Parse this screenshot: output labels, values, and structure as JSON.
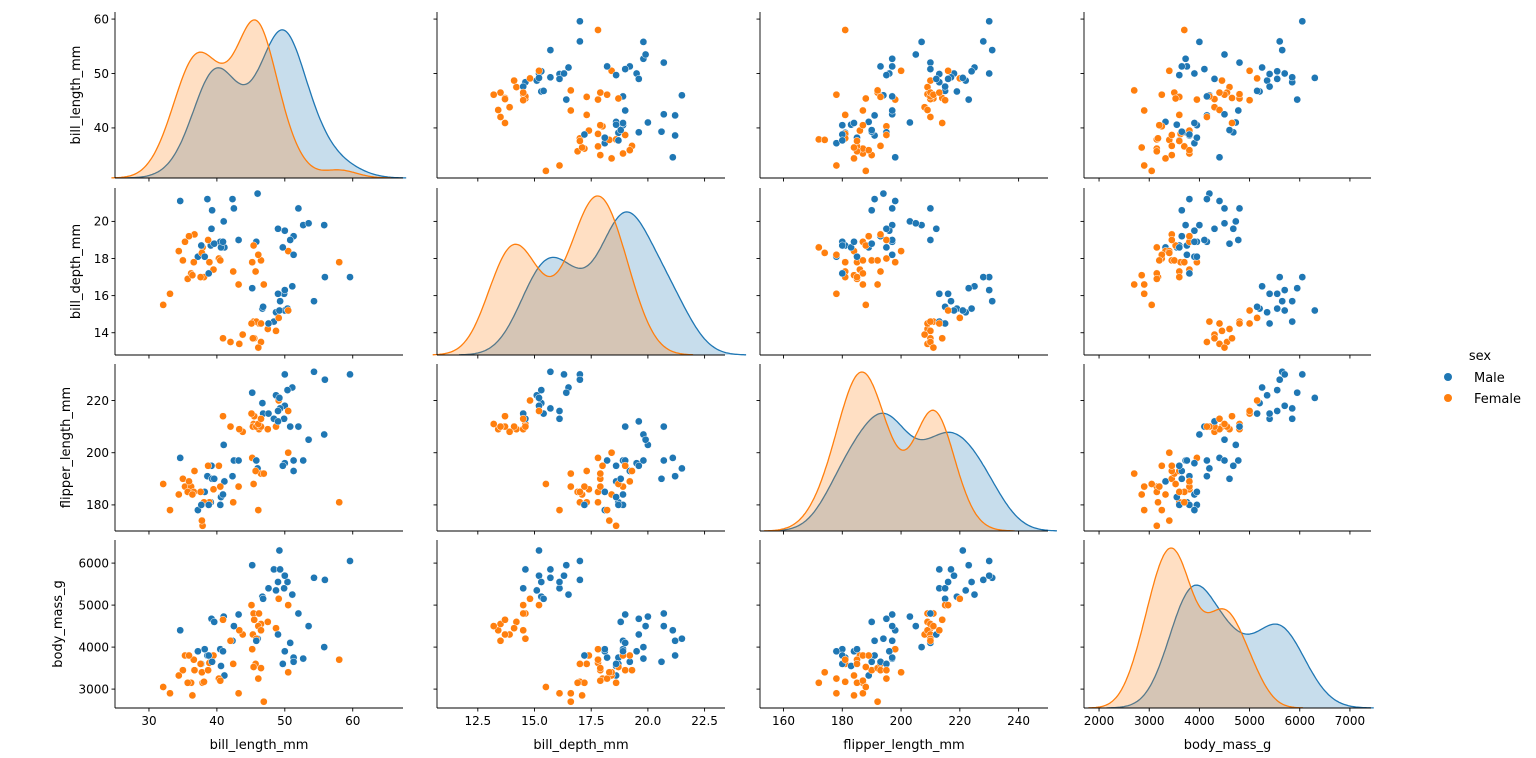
{
  "chart_data": {
    "type": "scatter",
    "kind": "pairplot",
    "diagonal": "kde",
    "hue": "sex",
    "legend": {
      "title": "sex",
      "placement": "right",
      "entries": [
        "Male",
        "Female"
      ]
    },
    "colors": {
      "Male": "#1f77b4",
      "Female": "#ff7f0e"
    },
    "variables": [
      {
        "name": "bill_length_mm",
        "ticks": [
          30,
          40,
          50,
          60
        ],
        "lim": [
          25,
          67.4
        ],
        "ylim": [
          30.8,
          61.3
        ]
      },
      {
        "name": "bill_depth_mm",
        "ticks": [
          12.5,
          15.0,
          17.5,
          20.0,
          22.5
        ],
        "yticks": [
          14,
          16,
          18,
          20
        ],
        "lim": [
          10.7,
          23.4
        ],
        "ylim": [
          12.8,
          21.8
        ]
      },
      {
        "name": "flipper_length_mm",
        "ticks": [
          160,
          180,
          200,
          220,
          240
        ],
        "yticks": [
          180,
          200,
          220
        ],
        "lim": [
          152,
          250
        ],
        "ylim": [
          170,
          234
        ]
      },
      {
        "name": "body_mass_g",
        "ticks": [
          2000,
          3000,
          4000,
          5000,
          6000,
          7000
        ],
        "yticks": [
          3000,
          4000,
          5000,
          6000
        ],
        "lim": [
          1700,
          7420
        ],
        "ylim": [
          2550,
          6550
        ]
      }
    ],
    "series": [
      {
        "name": "Male",
        "points": [
          [
            39.1,
            18.7,
            181,
            3750
          ],
          [
            39.3,
            20.6,
            190,
            3650
          ],
          [
            39.2,
            19.6,
            195,
            4675
          ],
          [
            38.6,
            21.2,
            191,
            3800
          ],
          [
            34.6,
            21.1,
            198,
            4400
          ],
          [
            42.5,
            20.7,
            197,
            4500
          ],
          [
            46.0,
            21.5,
            194,
            4200
          ],
          [
            37.7,
            18.7,
            180,
            3600
          ],
          [
            38.2,
            18.1,
            185,
            3950
          ],
          [
            38.8,
            17.2,
            180,
            3800
          ],
          [
            40.6,
            18.6,
            183,
            3550
          ],
          [
            40.5,
            18.9,
            180,
            3950
          ],
          [
            37.2,
            18.1,
            178,
            3900
          ],
          [
            40.9,
            18.9,
            184,
            3900
          ],
          [
            41.1,
            18.6,
            189,
            3325
          ],
          [
            42.3,
            21.2,
            191,
            4150
          ],
          [
            43.2,
            19.0,
            197,
            4775
          ],
          [
            41.0,
            20.0,
            203,
            4725
          ],
          [
            45.8,
            18.9,
            197,
            4150
          ],
          [
            39.6,
            18.8,
            190,
            4600
          ],
          [
            50.0,
            19.5,
            196,
            3900
          ],
          [
            51.3,
            19.2,
            193,
            3650
          ],
          [
            52.7,
            19.8,
            197,
            3725
          ],
          [
            51.3,
            18.2,
            197,
            3750
          ],
          [
            49.7,
            18.6,
            195,
            3600
          ],
          [
            55.8,
            19.8,
            207,
            4000
          ],
          [
            52.0,
            20.7,
            210,
            4800
          ],
          [
            50.8,
            19.0,
            210,
            4100
          ],
          [
            53.5,
            19.9,
            205,
            4500
          ],
          [
            49.0,
            19.6,
            212,
            4300
          ],
          [
            50.0,
            16.3,
            230,
            5700
          ],
          [
            50.0,
            15.2,
            218,
            5700
          ],
          [
            47.6,
            14.5,
            215,
            5400
          ],
          [
            46.7,
            15.3,
            219,
            5200
          ],
          [
            46.8,
            15.4,
            215,
            5150
          ],
          [
            49.0,
            16.1,
            216,
            5550
          ],
          [
            48.4,
            14.6,
            213,
            5850
          ],
          [
            49.3,
            15.7,
            217,
            5850
          ],
          [
            49.2,
            15.2,
            221,
            6300
          ],
          [
            48.7,
            15.1,
            222,
            5350
          ],
          [
            50.4,
            15.3,
            224,
            5550
          ],
          [
            45.2,
            16.4,
            223,
            5950
          ],
          [
            49.9,
            16.1,
            213,
            5400
          ],
          [
            55.9,
            17.0,
            228,
            5600
          ],
          [
            59.6,
            17.0,
            230,
            6050
          ],
          [
            51.1,
            16.5,
            225,
            5250
          ],
          [
            54.3,
            15.7,
            231,
            5650
          ]
        ]
      },
      {
        "name": "Female",
        "points": [
          [
            39.5,
            17.4,
            186,
            3800
          ],
          [
            40.3,
            18.0,
            195,
            3250
          ],
          [
            36.7,
            19.3,
            193,
            3450
          ],
          [
            38.9,
            17.8,
            181,
            3625
          ],
          [
            36.6,
            17.8,
            185,
            3700
          ],
          [
            38.7,
            19.0,
            195,
            3450
          ],
          [
            34.4,
            18.4,
            184,
            3325
          ],
          [
            37.8,
            18.3,
            174,
            3400
          ],
          [
            35.9,
            19.2,
            189,
            3800
          ],
          [
            35.3,
            18.9,
            187,
            3800
          ],
          [
            40.5,
            17.9,
            187,
            3200
          ],
          [
            37.9,
            18.6,
            172,
            3150
          ],
          [
            36.2,
            17.2,
            187,
            3150
          ],
          [
            32.1,
            15.5,
            188,
            3050
          ],
          [
            35.0,
            17.9,
            190,
            3450
          ],
          [
            33.1,
            16.1,
            178,
            2900
          ],
          [
            36.4,
            17.1,
            184,
            2850
          ],
          [
            38.1,
            17.0,
            181,
            3175
          ],
          [
            35.7,
            16.9,
            185,
            3150
          ],
          [
            37.6,
            17.0,
            185,
            3600
          ],
          [
            46.5,
            17.9,
            192,
            3500
          ],
          [
            45.4,
            18.7,
            188,
            3525
          ],
          [
            45.2,
            17.8,
            198,
            3950
          ],
          [
            46.1,
            18.2,
            178,
            3250
          ],
          [
            58.0,
            17.8,
            181,
            3700
          ],
          [
            42.4,
            17.3,
            181,
            3600
          ],
          [
            43.2,
            16.6,
            187,
            2900
          ],
          [
            46.9,
            16.6,
            192,
            2700
          ],
          [
            50.5,
            18.4,
            200,
            3400
          ],
          [
            45.7,
            17.3,
            193,
            3600
          ],
          [
            46.1,
            13.2,
            211,
            4500
          ],
          [
            48.7,
            14.1,
            210,
            4450
          ],
          [
            46.5,
            13.5,
            210,
            4550
          ],
          [
            45.4,
            14.6,
            211,
            4800
          ],
          [
            43.3,
            13.4,
            209,
            4400
          ],
          [
            40.9,
            13.7,
            214,
            4650
          ],
          [
            45.5,
            13.7,
            214,
            4650
          ],
          [
            45.8,
            14.6,
            210,
            4200
          ],
          [
            42.0,
            13.5,
            210,
            4150
          ],
          [
            46.2,
            14.5,
            209,
            4800
          ],
          [
            45.1,
            14.5,
            215,
            5000
          ],
          [
            46.5,
            14.5,
            213,
            4400
          ],
          [
            43.8,
            13.9,
            208,
            4300
          ],
          [
            49.1,
            14.8,
            220,
            5150
          ],
          [
            47.5,
            14.2,
            209,
            4600
          ],
          [
            45.3,
            13.7,
            210,
            4300
          ],
          [
            50.5,
            15.2,
            216,
            5000
          ]
        ]
      }
    ]
  }
}
